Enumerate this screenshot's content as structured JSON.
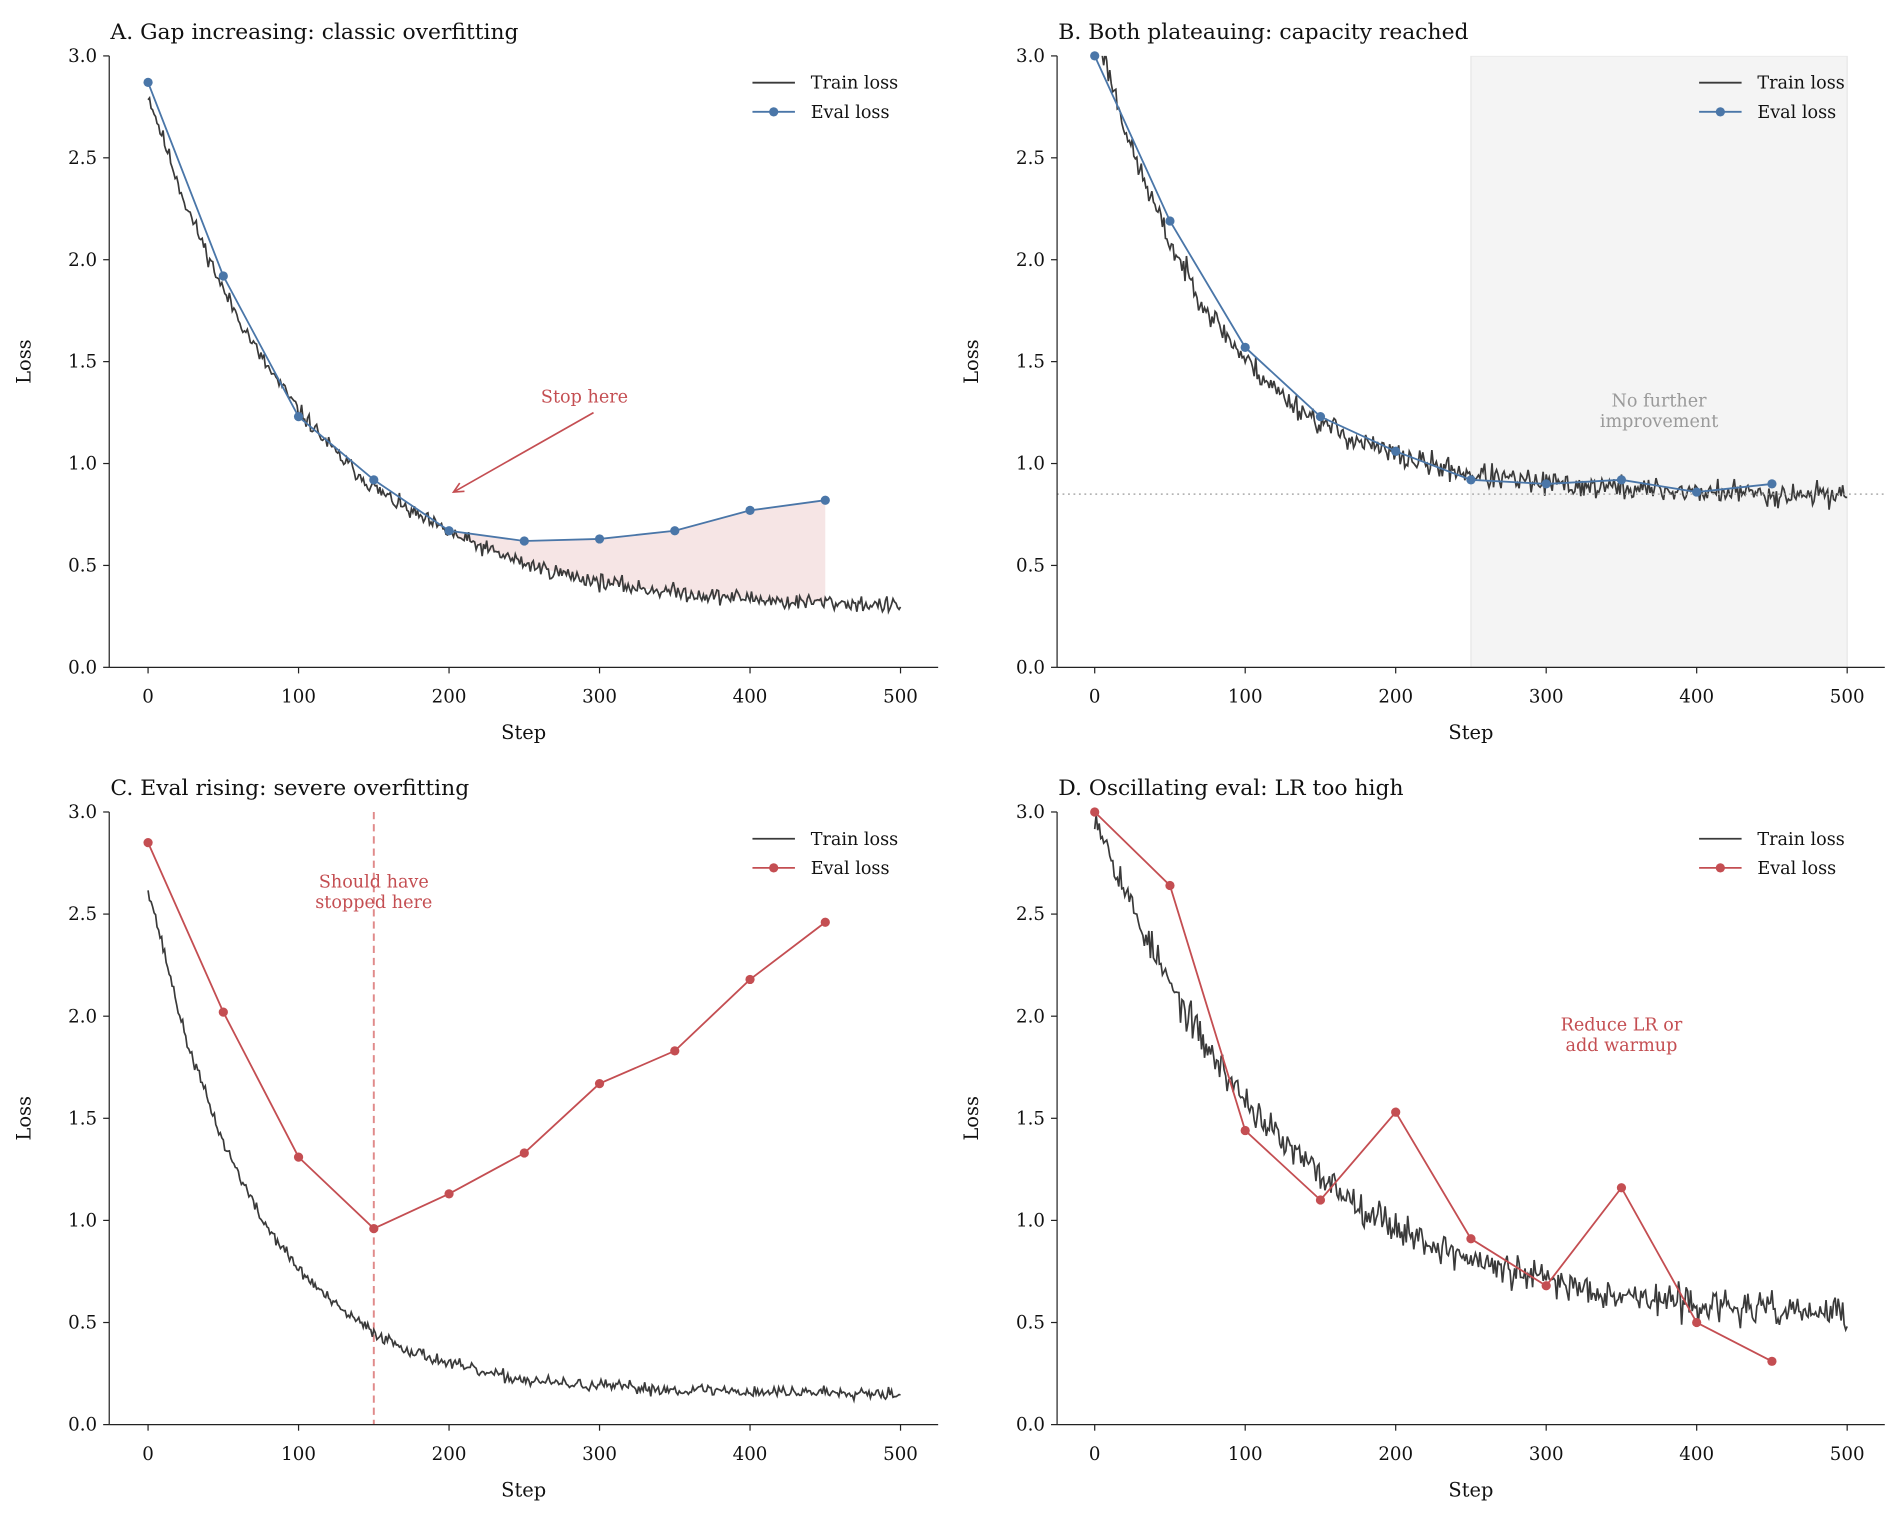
{
  "colors": {
    "train": "#3a3a3a",
    "blue": "#4a76a8",
    "red": "#c44e52",
    "red_light": "#e08a8a",
    "gray_text": "#9a9a9a",
    "span": "#f4f4f4",
    "fill": "#c44e52"
  },
  "chart_data": [
    {
      "type": "line",
      "title": "A. Gap increasing: classic overfitting",
      "xlabel": "Step",
      "ylabel": "Loss",
      "xlim": [
        -25,
        525
      ],
      "ylim": [
        0,
        3
      ],
      "xticks": [
        "0",
        "100",
        "200",
        "300",
        "400",
        "500"
      ],
      "yticks": [
        "0.0",
        "0.5",
        "1.0",
        "1.5",
        "2.0",
        "2.5",
        "3.0"
      ],
      "legend": {
        "placement": "top-right",
        "entries": [
          "Train loss",
          "Eval loss"
        ]
      },
      "eval_color": "blue",
      "train": {
        "step_interval": 25,
        "values": [
          2.81,
          2.27,
          1.85,
          1.52,
          1.26,
          1.05,
          0.88,
          0.76,
          0.66,
          0.58,
          0.51,
          0.46,
          0.42,
          0.39,
          0.37,
          0.35,
          0.34,
          0.32,
          0.32,
          0.31,
          0.3
        ],
        "noise": 0.02,
        "seed": 11
      },
      "eval": {
        "x": [
          0,
          50,
          100,
          150,
          200,
          250,
          300,
          350,
          400,
          450
        ],
        "y": [
          2.87,
          1.92,
          1.23,
          0.92,
          0.67,
          0.62,
          0.63,
          0.67,
          0.77,
          0.82
        ]
      },
      "gap_fill": {
        "from": 200,
        "to": 450
      },
      "annotations": [
        {
          "lines": [
            "Stop here"
          ],
          "x": 290,
          "y": 1.3,
          "color": "red",
          "arrow_from": [
            296,
            1.25
          ],
          "arrow_to": [
            203,
            0.86
          ]
        }
      ]
    },
    {
      "type": "line",
      "title": "B. Both plateauing: capacity reached",
      "xlabel": "Step",
      "ylabel": "Loss",
      "xlim": [
        -25,
        525
      ],
      "ylim": [
        0,
        3
      ],
      "xticks": [
        "0",
        "100",
        "200",
        "300",
        "400",
        "500"
      ],
      "yticks": [
        "0.0",
        "0.5",
        "1.0",
        "1.5",
        "2.0",
        "2.5",
        "3.0"
      ],
      "legend": {
        "placement": "top-right",
        "entries": [
          "Train loss",
          "Eval loss"
        ]
      },
      "eval_color": "blue",
      "train": {
        "step_interval": 25,
        "values": [
          3.15,
          2.53,
          2.08,
          1.75,
          1.51,
          1.33,
          1.2,
          1.11,
          1.04,
          0.99,
          0.95,
          0.92,
          0.9,
          0.89,
          0.88,
          0.87,
          0.86,
          0.86,
          0.85,
          0.85,
          0.85
        ],
        "noise": 0.03,
        "seed": 23
      },
      "eval": {
        "x": [
          0,
          50,
          100,
          150,
          200,
          250,
          300,
          350,
          400,
          450
        ],
        "y": [
          3.0,
          2.19,
          1.57,
          1.23,
          1.06,
          0.92,
          0.9,
          0.92,
          0.86,
          0.9
        ]
      },
      "shaded_span": [
        250,
        500
      ],
      "hline": 0.85,
      "annotations": [
        {
          "lines": [
            "No further",
            "improvement"
          ],
          "x": 375,
          "y": 1.28,
          "color": "gray_text"
        }
      ]
    },
    {
      "type": "line",
      "title": "C. Eval rising: severe overfitting",
      "xlabel": "Step",
      "ylabel": "Loss",
      "xlim": [
        -25,
        525
      ],
      "ylim": [
        0,
        3
      ],
      "xticks": [
        "0",
        "100",
        "200",
        "300",
        "400",
        "500"
      ],
      "yticks": [
        "0.0",
        "0.5",
        "1.0",
        "1.5",
        "2.0",
        "2.5",
        "3.0"
      ],
      "legend": {
        "placement": "top-right",
        "entries": [
          "Train loss",
          "Eval loss"
        ]
      },
      "eval_color": "red",
      "train": {
        "step_interval": 25,
        "values": [
          2.63,
          1.89,
          1.38,
          1.01,
          0.76,
          0.58,
          0.45,
          0.36,
          0.3,
          0.25,
          0.22,
          0.2,
          0.19,
          0.18,
          0.17,
          0.17,
          0.16,
          0.16,
          0.16,
          0.16,
          0.15
        ],
        "noise": 0.015,
        "seed": 37
      },
      "eval": {
        "x": [
          0,
          50,
          100,
          150,
          200,
          250,
          300,
          350,
          400,
          450
        ],
        "y": [
          2.85,
          2.02,
          1.31,
          0.96,
          1.13,
          1.33,
          1.67,
          1.83,
          2.18,
          2.46
        ]
      },
      "vline": 150,
      "annotations": [
        {
          "lines": [
            "Should have",
            "stopped here"
          ],
          "x": 150,
          "y": 2.63,
          "color": "red"
        }
      ]
    },
    {
      "type": "line",
      "title": "D. Oscillating eval: LR too high",
      "xlabel": "Step",
      "ylabel": "Loss",
      "xlim": [
        -25,
        525
      ],
      "ylim": [
        0,
        3
      ],
      "xticks": [
        "0",
        "100",
        "200",
        "300",
        "400",
        "500"
      ],
      "yticks": [
        "0.0",
        "0.5",
        "1.0",
        "1.5",
        "2.0",
        "2.5",
        "3.0"
      ],
      "legend": {
        "placement": "top-right",
        "entries": [
          "Train loss",
          "Eval loss"
        ]
      },
      "eval_color": "red",
      "train": {
        "step_interval": 25,
        "values": [
          3.0,
          2.53,
          2.15,
          1.84,
          1.59,
          1.38,
          1.22,
          1.08,
          0.97,
          0.88,
          0.81,
          0.75,
          0.71,
          0.67,
          0.64,
          0.61,
          0.59,
          0.57,
          0.56,
          0.55,
          0.54
        ],
        "noise": 0.04,
        "seed": 53
      },
      "eval": {
        "x": [
          0,
          50,
          100,
          150,
          200,
          250,
          300,
          350,
          400,
          450
        ],
        "y": [
          3.0,
          2.64,
          1.44,
          1.1,
          1.53,
          0.91,
          0.68,
          1.16,
          0.5,
          0.31
        ]
      },
      "annotations": [
        {
          "lines": [
            "Reduce LR or",
            "add warmup"
          ],
          "x": 350,
          "y": 1.93,
          "color": "red"
        }
      ]
    }
  ]
}
